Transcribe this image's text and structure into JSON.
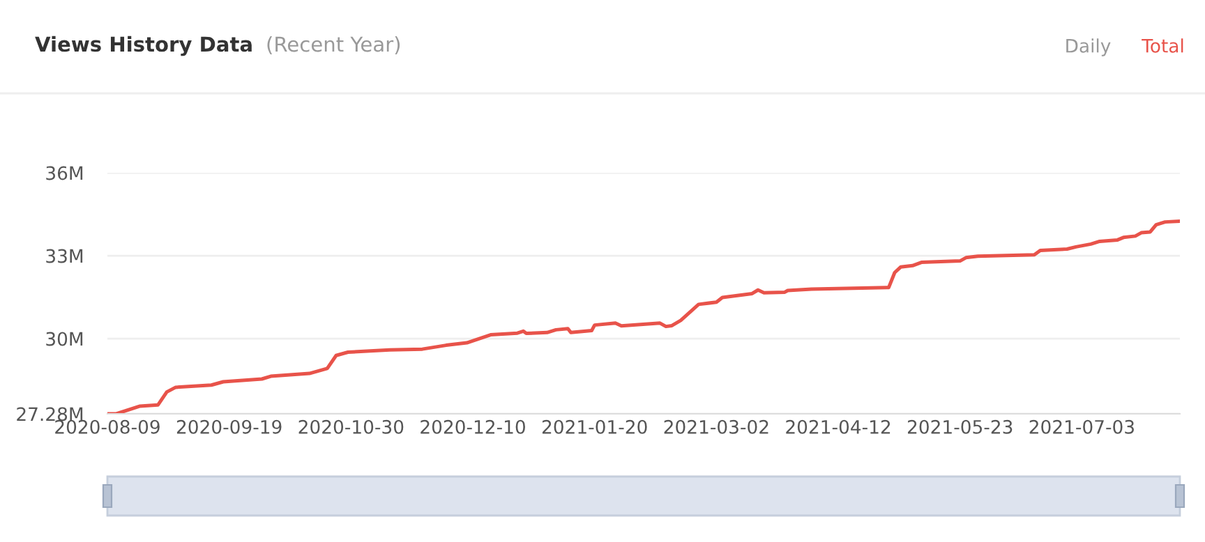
{
  "chart_data": {
    "type": "line",
    "title": "Views History Data",
    "subtitle": "(Recent Year)",
    "annotations": [
      "Daily",
      "Total"
    ],
    "x": [
      "2020-08-09",
      "2020-08-12",
      "2020-08-20",
      "2020-08-26",
      "2020-08-29",
      "2020-09-01",
      "2020-09-13",
      "2020-09-17",
      "2020-09-30",
      "2020-10-03",
      "2020-10-16",
      "2020-10-22",
      "2020-10-25",
      "2020-10-29",
      "2020-11-12",
      "2020-11-23",
      "2020-12-01",
      "2020-12-08",
      "2020-12-16",
      "2020-12-25",
      "2020-12-27",
      "2020-12-28",
      "2021-01-04",
      "2021-01-07",
      "2021-01-11",
      "2021-01-12",
      "2021-01-19",
      "2021-01-20",
      "2021-01-27",
      "2021-01-29",
      "2021-02-11",
      "2021-02-13",
      "2021-02-15",
      "2021-02-18",
      "2021-02-21",
      "2021-02-24",
      "2021-03-02",
      "2021-03-04",
      "2021-03-14",
      "2021-03-16",
      "2021-03-18",
      "2021-03-25",
      "2021-03-26",
      "2021-04-03",
      "2021-04-29",
      "2021-05-01",
      "2021-05-03",
      "2021-05-07",
      "2021-05-10",
      "2021-05-23",
      "2021-05-25",
      "2021-05-29",
      "2021-06-17",
      "2021-06-19",
      "2021-06-28",
      "2021-07-01",
      "2021-07-06",
      "2021-07-09",
      "2021-07-15",
      "2021-07-17",
      "2021-07-21",
      "2021-07-23",
      "2021-07-26",
      "2021-07-28",
      "2021-07-31",
      "2021-08-05"
    ],
    "series": [
      {
        "color": "#e8534a",
        "values": [
          27.28,
          27.28,
          27.56,
          27.6,
          28.07,
          28.24,
          28.32,
          28.44,
          28.54,
          28.64,
          28.74,
          28.92,
          29.39,
          29.51,
          29.59,
          29.62,
          29.76,
          29.85,
          30.14,
          30.2,
          30.27,
          30.19,
          30.22,
          30.32,
          30.36,
          30.22,
          30.29,
          30.49,
          30.56,
          30.46,
          30.56,
          30.44,
          30.47,
          30.66,
          30.95,
          31.24,
          31.32,
          31.49,
          31.63,
          31.76,
          31.66,
          31.68,
          31.74,
          31.79,
          31.85,
          32.39,
          32.59,
          32.64,
          32.76,
          32.81,
          32.93,
          32.98,
          33.03,
          33.19,
          33.24,
          33.32,
          33.42,
          33.52,
          33.57,
          33.66,
          33.71,
          33.83,
          33.86,
          34.12,
          34.22,
          34.25
        ]
      }
    ],
    "xlim": [
      "2020-08-09",
      "2021-08-05"
    ],
    "xticks": [
      "2020-08-09",
      "2020-09-19",
      "2020-10-30",
      "2020-12-10",
      "2021-01-20",
      "2021-03-02",
      "2021-04-12",
      "2021-05-23",
      "2021-07-03"
    ],
    "ylim": [
      27.28,
      36
    ],
    "yticks": [
      {
        "value": 27.28,
        "label": "27.28M"
      },
      {
        "value": 30,
        "label": "30M"
      },
      {
        "value": 33,
        "label": "33M"
      },
      {
        "value": 36,
        "label": "36M"
      }
    ],
    "grid": "y",
    "marker": "none",
    "line_style": "solid"
  }
}
